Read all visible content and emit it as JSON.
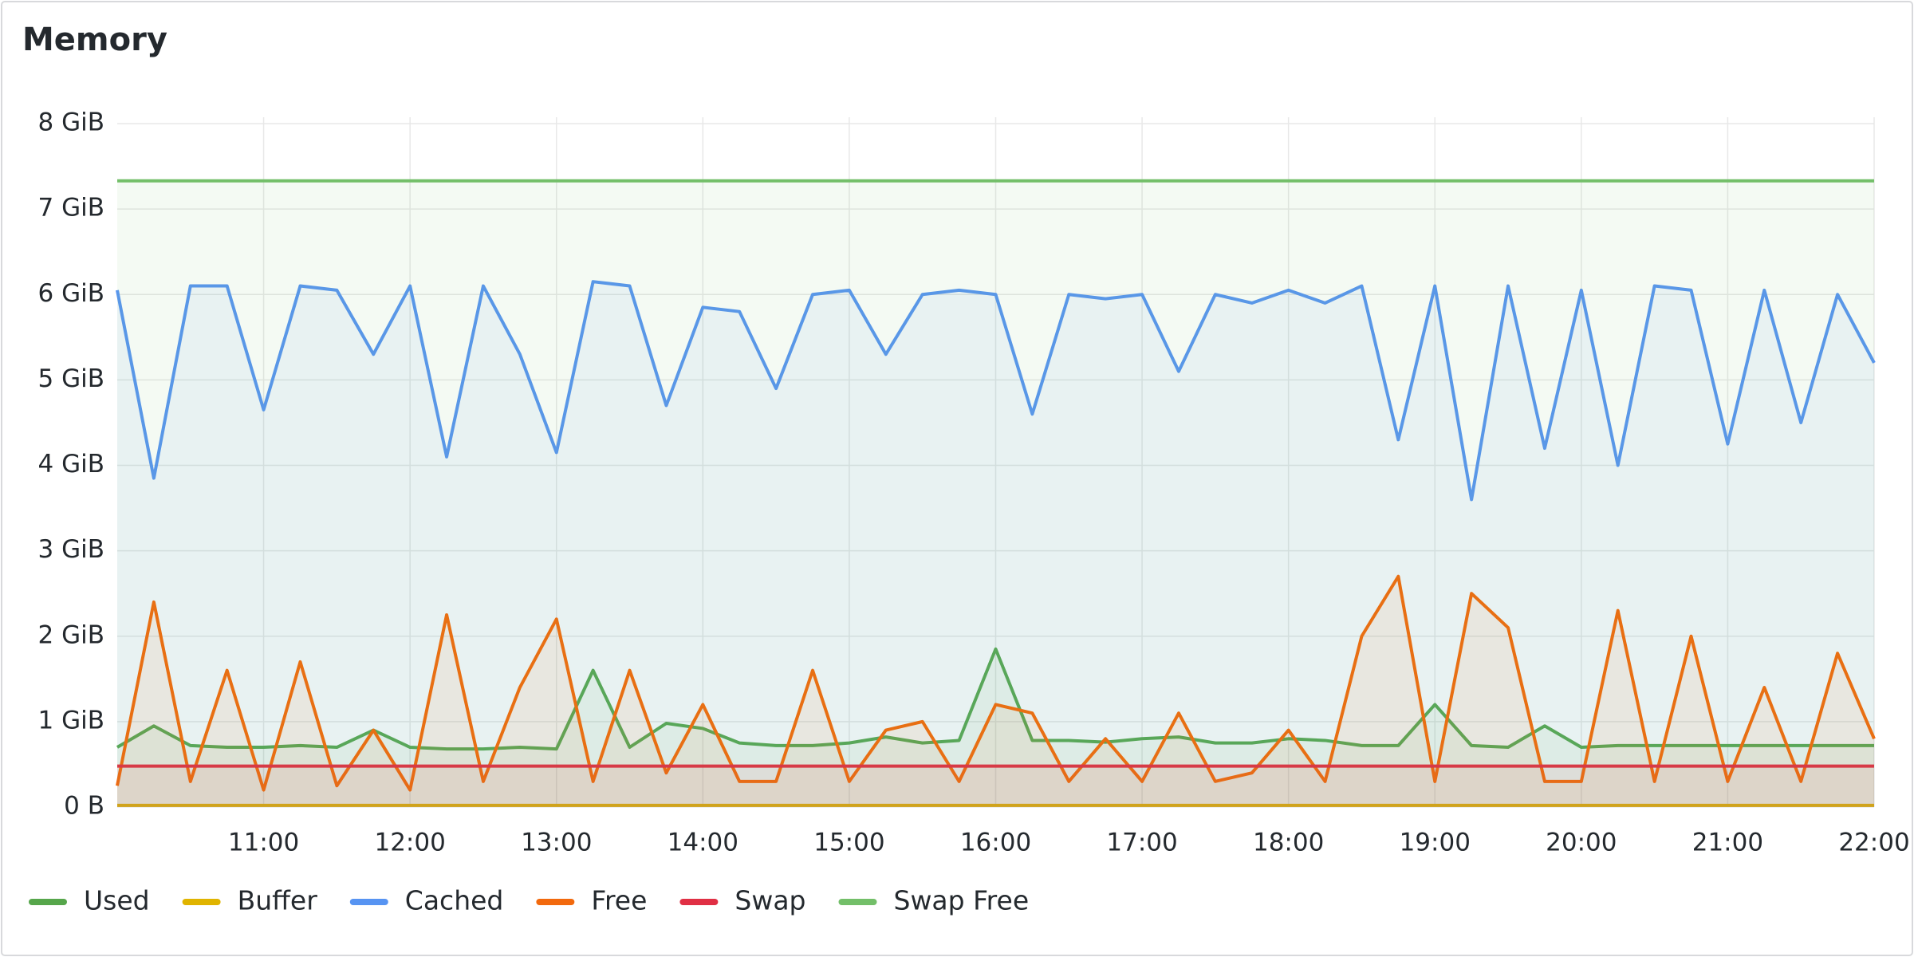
{
  "chart_data": {
    "type": "line",
    "title": "Memory",
    "x": [
      "10:00",
      "10:15",
      "10:30",
      "10:45",
      "11:00",
      "11:15",
      "11:30",
      "11:45",
      "12:00",
      "12:15",
      "12:30",
      "12:45",
      "13:00",
      "13:15",
      "13:30",
      "13:45",
      "14:00",
      "14:15",
      "14:30",
      "14:45",
      "15:00",
      "15:15",
      "15:30",
      "15:45",
      "16:00",
      "16:15",
      "16:30",
      "16:45",
      "17:00",
      "17:15",
      "17:30",
      "17:45",
      "18:00",
      "18:15",
      "18:30",
      "18:45",
      "19:00",
      "19:15",
      "19:30",
      "19:45",
      "20:00",
      "20:15",
      "20:30",
      "20:45",
      "21:00",
      "21:15",
      "21:30",
      "21:45",
      "22:00"
    ],
    "xlim": [
      "10:00",
      "22:00"
    ],
    "xticks": [
      "11:00",
      "12:00",
      "13:00",
      "14:00",
      "15:00",
      "16:00",
      "17:00",
      "18:00",
      "19:00",
      "20:00",
      "21:00",
      "22:00"
    ],
    "ylim": [
      0,
      8
    ],
    "yticks": [
      {
        "value": 0,
        "label": "0 B"
      },
      {
        "value": 1,
        "label": "1 GiB"
      },
      {
        "value": 2,
        "label": "2 GiB"
      },
      {
        "value": 3,
        "label": "3 GiB"
      },
      {
        "value": 4,
        "label": "4 GiB"
      },
      {
        "value": 5,
        "label": "5 GiB"
      },
      {
        "value": 6,
        "label": "6 GiB"
      },
      {
        "value": 7,
        "label": "7 GiB"
      },
      {
        "value": 8,
        "label": "8 GiB"
      }
    ],
    "grid": true,
    "series": [
      {
        "name": "Used",
        "color": "#56a64b",
        "values": [
          0.7,
          0.95,
          0.72,
          0.7,
          0.7,
          0.72,
          0.7,
          0.9,
          0.7,
          0.68,
          0.68,
          0.7,
          0.68,
          1.6,
          0.7,
          0.98,
          0.92,
          0.75,
          0.72,
          0.72,
          0.75,
          0.82,
          0.75,
          0.78,
          1.85,
          0.78,
          0.78,
          0.76,
          0.8,
          0.82,
          0.75,
          0.75,
          0.8,
          0.78,
          0.72,
          0.72,
          1.2,
          0.72,
          0.7,
          0.95,
          0.7,
          0.72,
          0.72,
          0.72,
          0.72,
          0.72,
          0.72,
          0.72,
          0.72
        ]
      },
      {
        "name": "Buffer",
        "color": "#e0b400",
        "values": [
          0.02,
          0.02,
          0.02,
          0.02,
          0.02,
          0.02,
          0.02,
          0.02,
          0.02,
          0.02,
          0.02,
          0.02,
          0.02,
          0.02,
          0.02,
          0.02,
          0.02,
          0.02,
          0.02,
          0.02,
          0.02,
          0.02,
          0.02,
          0.02,
          0.02,
          0.02,
          0.02,
          0.02,
          0.02,
          0.02,
          0.02,
          0.02,
          0.02,
          0.02,
          0.02,
          0.02,
          0.02,
          0.02,
          0.02,
          0.02,
          0.02,
          0.02,
          0.02,
          0.02,
          0.02,
          0.02,
          0.02,
          0.02,
          0.02
        ]
      },
      {
        "name": "Cached",
        "color": "#5794f2",
        "values": [
          6.05,
          3.85,
          6.1,
          6.1,
          4.65,
          6.1,
          6.05,
          5.3,
          6.1,
          4.1,
          6.1,
          5.3,
          4.15,
          6.15,
          6.1,
          4.7,
          5.85,
          5.8,
          4.9,
          6.0,
          6.05,
          5.3,
          6.0,
          6.05,
          6.0,
          4.6,
          6.0,
          5.95,
          6.0,
          5.1,
          6.0,
          5.9,
          6.05,
          5.9,
          6.1,
          4.3,
          6.1,
          3.6,
          6.1,
          4.2,
          6.05,
          4.0,
          6.1,
          6.05,
          4.25,
          6.05,
          4.5,
          6.0,
          5.2
        ]
      },
      {
        "name": "Free",
        "color": "#f2690d",
        "values": [
          0.25,
          2.4,
          0.3,
          1.6,
          0.2,
          1.7,
          0.25,
          0.9,
          0.2,
          2.25,
          0.3,
          1.4,
          2.2,
          0.3,
          1.6,
          0.4,
          1.2,
          0.3,
          0.3,
          1.6,
          0.3,
          0.9,
          1.0,
          0.3,
          1.2,
          1.1,
          0.3,
          0.8,
          0.3,
          1.1,
          0.3,
          0.4,
          0.9,
          0.3,
          2.0,
          2.7,
          0.3,
          2.5,
          2.1,
          0.3,
          0.3,
          2.3,
          0.3,
          2.0,
          0.3,
          1.4,
          0.3,
          1.8,
          0.8
        ]
      },
      {
        "name": "Swap",
        "color": "#e02f44",
        "values": [
          0.48,
          0.48,
          0.48,
          0.48,
          0.48,
          0.48,
          0.48,
          0.48,
          0.48,
          0.48,
          0.48,
          0.48,
          0.48,
          0.48,
          0.48,
          0.48,
          0.48,
          0.48,
          0.48,
          0.48,
          0.48,
          0.48,
          0.48,
          0.48,
          0.48,
          0.48,
          0.48,
          0.48,
          0.48,
          0.48,
          0.48,
          0.48,
          0.48,
          0.48,
          0.48,
          0.48,
          0.48,
          0.48,
          0.48,
          0.48,
          0.48,
          0.48,
          0.48,
          0.48,
          0.48,
          0.48,
          0.48,
          0.48,
          0.48
        ]
      },
      {
        "name": "Swap Free",
        "color": "#73bf69",
        "values": [
          7.33,
          7.33,
          7.33,
          7.33,
          7.33,
          7.33,
          7.33,
          7.33,
          7.33,
          7.33,
          7.33,
          7.33,
          7.33,
          7.33,
          7.33,
          7.33,
          7.33,
          7.33,
          7.33,
          7.33,
          7.33,
          7.33,
          7.33,
          7.33,
          7.33,
          7.33,
          7.33,
          7.33,
          7.33,
          7.33,
          7.33,
          7.33,
          7.33,
          7.33,
          7.33,
          7.33,
          7.33,
          7.33,
          7.33,
          7.33,
          7.33,
          7.33,
          7.33,
          7.33,
          7.33,
          7.33,
          7.33,
          7.33,
          7.33
        ]
      }
    ]
  }
}
